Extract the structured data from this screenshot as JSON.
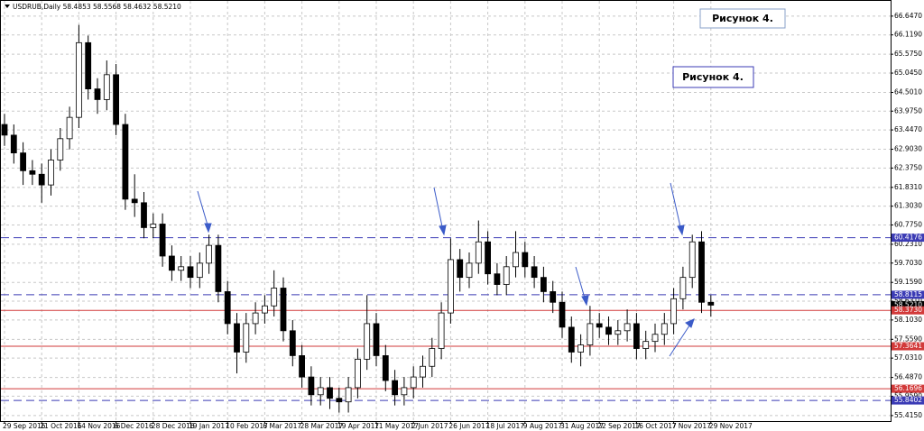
{
  "chart_data": {
    "type": "candlestick",
    "title": "USDRUB,Daily 58.4853 58.5568 58.4632 58.5210",
    "annotations": [
      "Рисунок 4.",
      "Рисунок 4."
    ],
    "categories": [
      "29 Sep 2016",
      null,
      null,
      null,
      "21 Oct 2016",
      null,
      null,
      null,
      "14 Nov 2016",
      null,
      null,
      null,
      "6 Dec 2016",
      null,
      null,
      null,
      "28 Dec 2016",
      null,
      null,
      null,
      "19 Jan 2017",
      null,
      null,
      null,
      "10 Feb 2017",
      null,
      null,
      null,
      "6 Mar 2017",
      null,
      null,
      null,
      "28 Mar 2017",
      null,
      null,
      null,
      "19 Apr 2017",
      null,
      null,
      null,
      "11 May 2017",
      null,
      null,
      null,
      "2 Jun 2017",
      null,
      null,
      null,
      "26 Jun 2017",
      null,
      null,
      null,
      "18 Jul 2017",
      null,
      null,
      null,
      "9 Aug 2017",
      null,
      null,
      null,
      "31 Aug 2017",
      null,
      null,
      null,
      "22 Sep 2017",
      null,
      null,
      null,
      "16 Oct 2017",
      null,
      null,
      null,
      "7 Nov 2017",
      null,
      null,
      null,
      "29 Nov 2017"
    ],
    "open": [
      63.6,
      63.3,
      62.8,
      62.3,
      62.2,
      61.9,
      62.6,
      63.2,
      63.8,
      65.9,
      64.6,
      64.3,
      65.0,
      63.6,
      61.5,
      61.4,
      60.7,
      60.8,
      59.9,
      59.5,
      59.6,
      59.3,
      59.7,
      60.2,
      58.9,
      58.0,
      57.2,
      58.0,
      58.3,
      58.5,
      59.0,
      57.8,
      57.1,
      56.5,
      56.0,
      56.2,
      55.9,
      55.8,
      56.2,
      57.0,
      58.0,
      57.1,
      56.4,
      56.0,
      56.2,
      56.5,
      56.8,
      57.3,
      58.3,
      59.8,
      59.3,
      59.7,
      60.3,
      59.4,
      59.1,
      59.6,
      60.0,
      59.6,
      59.3,
      58.9,
      58.6,
      57.9,
      57.2,
      57.4,
      58.0,
      57.9,
      57.7,
      57.8,
      58.0,
      57.3,
      57.5,
      57.7,
      58.0,
      58.7,
      59.3,
      60.3,
      58.6
    ],
    "high": [
      63.9,
      63.6,
      63.1,
      62.6,
      62.5,
      62.9,
      63.5,
      64.1,
      66.4,
      66.1,
      64.9,
      65.4,
      65.3,
      63.9,
      62.2,
      61.7,
      61.1,
      61.1,
      60.2,
      59.9,
      59.9,
      60.0,
      60.5,
      60.5,
      59.2,
      58.3,
      58.3,
      58.6,
      58.8,
      59.5,
      59.3,
      58.1,
      57.4,
      56.8,
      56.5,
      56.5,
      56.2,
      56.5,
      57.3,
      58.8,
      58.3,
      57.4,
      56.7,
      56.5,
      56.8,
      57.1,
      57.6,
      58.6,
      60.4,
      60.1,
      60.0,
      60.9,
      60.6,
      59.7,
      59.9,
      60.6,
      60.3,
      59.9,
      59.6,
      59.2,
      58.9,
      58.2,
      57.7,
      58.5,
      58.3,
      58.2,
      58.1,
      58.4,
      58.3,
      57.8,
      58.0,
      58.3,
      59.0,
      59.6,
      60.5,
      60.6,
      58.8
    ],
    "low": [
      63.0,
      62.5,
      61.9,
      61.9,
      61.4,
      61.6,
      62.3,
      62.9,
      63.5,
      64.3,
      63.9,
      64.0,
      63.3,
      61.2,
      61.0,
      60.4,
      60.4,
      59.6,
      59.2,
      59.2,
      59.0,
      59.0,
      59.4,
      58.6,
      57.7,
      56.6,
      56.9,
      57.7,
      58.0,
      58.2,
      57.5,
      56.8,
      56.2,
      55.7,
      55.7,
      55.6,
      55.5,
      55.5,
      55.9,
      56.7,
      56.8,
      56.1,
      55.7,
      55.7,
      55.9,
      56.2,
      56.5,
      57.0,
      58.0,
      58.9,
      59.0,
      59.4,
      59.1,
      58.8,
      58.8,
      59.3,
      59.3,
      59.0,
      58.6,
      58.3,
      57.6,
      56.9,
      56.8,
      57.1,
      57.6,
      57.4,
      57.4,
      57.5,
      57.0,
      57.0,
      57.2,
      57.4,
      57.7,
      58.4,
      59.0,
      58.3,
      58.2
    ],
    "close": [
      63.3,
      62.8,
      62.3,
      62.2,
      61.9,
      62.6,
      63.2,
      63.8,
      65.9,
      64.6,
      64.3,
      65.0,
      63.6,
      61.5,
      61.4,
      60.7,
      60.8,
      59.9,
      59.5,
      59.6,
      59.3,
      59.7,
      60.2,
      58.9,
      58.0,
      57.2,
      58.0,
      58.3,
      58.5,
      59.0,
      57.8,
      57.1,
      56.5,
      56.0,
      56.2,
      55.9,
      55.8,
      56.2,
      57.0,
      58.0,
      57.1,
      56.4,
      56.0,
      56.2,
      56.5,
      56.8,
      57.3,
      58.3,
      59.8,
      59.3,
      59.7,
      60.3,
      59.4,
      59.1,
      59.6,
      60.0,
      59.6,
      59.3,
      58.9,
      58.6,
      57.9,
      57.2,
      57.4,
      58.0,
      57.9,
      57.7,
      57.8,
      58.0,
      57.3,
      57.5,
      57.7,
      58.0,
      58.7,
      59.3,
      60.3,
      58.6,
      58.52
    ],
    "up_color": "#ffffff",
    "down_color": "#000000",
    "grid": true,
    "ylim": [
      55.26,
      67.1
    ],
    "yticks": [
      {
        "value": 66.647,
        "label": "66.6470"
      },
      {
        "value": 66.119,
        "label": "66.1190"
      },
      {
        "value": 65.575,
        "label": "65.5750"
      },
      {
        "value": 65.045,
        "label": "65.0450"
      },
      {
        "value": 64.501,
        "label": "64.5010"
      },
      {
        "value": 63.975,
        "label": "63.9750"
      },
      {
        "value": 63.447,
        "label": "63.4470"
      },
      {
        "value": 62.903,
        "label": "62.9030"
      },
      {
        "value": 62.375,
        "label": "62.3750"
      },
      {
        "value": 61.831,
        "label": "61.8310"
      },
      {
        "value": 61.303,
        "label": "61.3030"
      },
      {
        "value": 60.775,
        "label": "60.7750"
      },
      {
        "value": 60.231,
        "label": "60.2310"
      },
      {
        "value": 59.703,
        "label": "59.7030"
      },
      {
        "value": 59.159,
        "label": "59.1590"
      },
      {
        "value": 58.631,
        "label": "58.6310"
      },
      {
        "value": 58.103,
        "label": "58.1030"
      },
      {
        "value": 57.559,
        "label": "57.5590"
      },
      {
        "value": 57.031,
        "label": "57.0310"
      },
      {
        "value": 56.487,
        "label": "56.4870"
      },
      {
        "value": 55.959,
        "label": "55.9590"
      },
      {
        "value": 55.415,
        "label": "55.4150"
      }
    ],
    "levels": [
      {
        "value": 60.4176,
        "color": "#3b3bb5",
        "style": "dashed"
      },
      {
        "value": 58.8115,
        "color": "#3b3bb5",
        "style": "dashed"
      },
      {
        "value": {
          "value": 58.521,
          "label": "58.5210"
        },
        "color": "#000000",
        "style": "none"
      },
      {
        "value": {
          "value": 58.373,
          "label": "58.3730"
        },
        "color": "#d23a3a",
        "style": "solid"
      },
      {
        "value": 57.3641,
        "color": "#d23a3a",
        "style": "solid"
      },
      {
        "value": 56.1696,
        "color": "#d23a3a",
        "style": "solid"
      },
      {
        "value": 55.8402,
        "color": "#3b3bb5",
        "style": "dashed"
      }
    ]
  }
}
